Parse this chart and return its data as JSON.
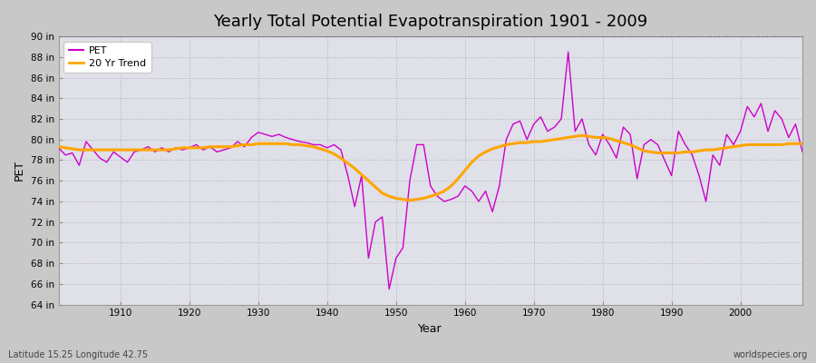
{
  "title": "Yearly Total Potential Evapotranspiration 1901 - 2009",
  "ylabel": "PET",
  "xlabel": "Year",
  "footnote_left": "Latitude 15.25 Longitude 42.75",
  "footnote_right": "worldspecies.org",
  "ylim": [
    64,
    90
  ],
  "ytick_labels": [
    "64 in",
    "66 in",
    "68 in",
    "70 in",
    "72 in",
    "74 in",
    "76 in",
    "78 in",
    "80 in",
    "82 in",
    "84 in",
    "86 in",
    "88 in",
    "90 in"
  ],
  "ytick_values": [
    64,
    66,
    68,
    70,
    72,
    74,
    76,
    78,
    80,
    82,
    84,
    86,
    88,
    90
  ],
  "xtick_values": [
    1910,
    1920,
    1930,
    1940,
    1950,
    1960,
    1970,
    1980,
    1990,
    2000
  ],
  "pet_color": "#cc00cc",
  "trend_color": "#FFA500",
  "fig_bg_color": "#c8c8c8",
  "plot_bg_color": "#e0e0e8",
  "title_fontsize": 13,
  "legend_entries": [
    "PET",
    "20 Yr Trend"
  ],
  "years": [
    1901,
    1902,
    1903,
    1904,
    1905,
    1906,
    1907,
    1908,
    1909,
    1910,
    1911,
    1912,
    1913,
    1914,
    1915,
    1916,
    1917,
    1918,
    1919,
    1920,
    1921,
    1922,
    1923,
    1924,
    1925,
    1926,
    1927,
    1928,
    1929,
    1930,
    1931,
    1932,
    1933,
    1934,
    1935,
    1936,
    1937,
    1938,
    1939,
    1940,
    1941,
    1942,
    1943,
    1944,
    1945,
    1946,
    1947,
    1948,
    1949,
    1950,
    1951,
    1952,
    1953,
    1954,
    1955,
    1956,
    1957,
    1958,
    1959,
    1960,
    1961,
    1962,
    1963,
    1964,
    1965,
    1966,
    1967,
    1968,
    1969,
    1970,
    1971,
    1972,
    1973,
    1974,
    1975,
    1976,
    1977,
    1978,
    1979,
    1980,
    1981,
    1982,
    1983,
    1984,
    1985,
    1986,
    1987,
    1988,
    1989,
    1990,
    1991,
    1992,
    1993,
    1994,
    1995,
    1996,
    1997,
    1998,
    1999,
    2000,
    2001,
    2002,
    2003,
    2004,
    2005,
    2006,
    2007,
    2008,
    2009
  ],
  "pet_values": [
    79.2,
    78.5,
    78.7,
    77.5,
    79.8,
    79.0,
    78.2,
    77.8,
    78.8,
    78.3,
    77.8,
    78.8,
    79.0,
    79.3,
    78.8,
    79.2,
    78.8,
    79.2,
    79.0,
    79.2,
    79.5,
    79.0,
    79.3,
    78.8,
    79.0,
    79.2,
    79.8,
    79.3,
    80.2,
    80.7,
    80.5,
    80.3,
    80.5,
    80.2,
    80.0,
    79.8,
    79.7,
    79.5,
    79.5,
    79.2,
    79.5,
    79.0,
    76.5,
    73.5,
    76.5,
    68.5,
    72.0,
    72.5,
    65.5,
    68.5,
    69.5,
    76.0,
    79.5,
    79.5,
    75.5,
    74.5,
    74.0,
    74.2,
    74.5,
    75.5,
    75.0,
    74.0,
    75.0,
    73.0,
    75.5,
    80.0,
    81.5,
    81.8,
    80.0,
    81.5,
    82.2,
    80.8,
    81.2,
    82.0,
    88.5,
    80.8,
    82.0,
    79.5,
    78.5,
    80.5,
    79.5,
    78.2,
    81.2,
    80.5,
    76.2,
    79.5,
    80.0,
    79.5,
    78.0,
    76.5,
    80.8,
    79.5,
    78.5,
    76.5,
    74.0,
    78.5,
    77.5,
    80.5,
    79.5,
    80.8,
    83.2,
    82.2,
    83.5,
    80.8,
    82.8,
    82.0,
    80.2,
    81.5,
    78.8
  ],
  "trend_values": [
    79.3,
    79.2,
    79.1,
    79.0,
    79.0,
    79.0,
    79.0,
    79.0,
    79.0,
    79.0,
    79.0,
    79.0,
    79.0,
    79.0,
    79.0,
    79.0,
    79.0,
    79.1,
    79.2,
    79.2,
    79.2,
    79.2,
    79.3,
    79.3,
    79.3,
    79.3,
    79.4,
    79.5,
    79.5,
    79.6,
    79.6,
    79.6,
    79.6,
    79.6,
    79.5,
    79.5,
    79.4,
    79.3,
    79.1,
    78.9,
    78.6,
    78.2,
    77.7,
    77.2,
    76.6,
    76.0,
    75.4,
    74.8,
    74.5,
    74.3,
    74.2,
    74.1,
    74.2,
    74.3,
    74.5,
    74.7,
    75.0,
    75.5,
    76.2,
    77.0,
    77.8,
    78.4,
    78.8,
    79.1,
    79.3,
    79.5,
    79.6,
    79.7,
    79.7,
    79.8,
    79.8,
    79.9,
    80.0,
    80.1,
    80.2,
    80.3,
    80.4,
    80.3,
    80.2,
    80.2,
    80.1,
    79.9,
    79.7,
    79.5,
    79.2,
    78.9,
    78.8,
    78.7,
    78.7,
    78.7,
    78.7,
    78.8,
    78.8,
    78.9,
    79.0,
    79.0,
    79.1,
    79.2,
    79.3,
    79.4,
    79.5,
    79.5,
    79.5,
    79.5,
    79.5,
    79.5,
    79.6,
    79.6,
    79.6
  ]
}
